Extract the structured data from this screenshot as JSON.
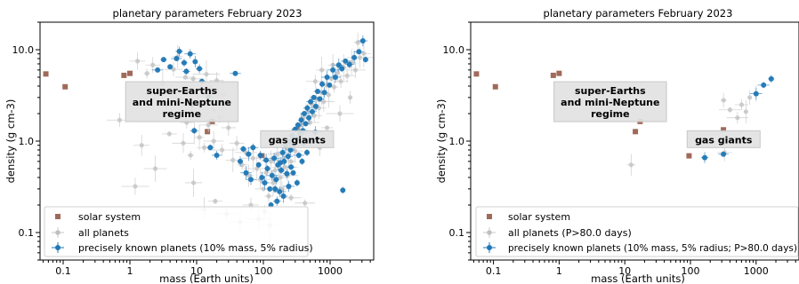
{
  "chart_data": [
    {
      "type": "scatter",
      "title": "planetary parameters February 2023",
      "xlabel": "mass (Earth units)",
      "ylabel": "density (g cm-3)",
      "xscale": "log",
      "yscale": "log",
      "xlim": [
        0.045,
        4500
      ],
      "ylim": [
        0.05,
        20
      ],
      "xticks": [
        "0.1",
        "1",
        "10",
        "100",
        "1000"
      ],
      "yticks": [
        "0.1",
        "1.0",
        "10.0"
      ],
      "grid": false,
      "legend_position": "lower-left",
      "legend": [
        "solar system",
        "all planets",
        "precisely known planets (10% mass, 5% radius)"
      ],
      "annotations": [
        {
          "text": "super-Earths\nand mini-Neptune\nregime",
          "x": 6,
          "y": 2.7
        },
        {
          "text": "gas giants",
          "x": 320,
          "y": 1.05
        }
      ],
      "series": [
        {
          "name": "solar system",
          "color": "#a0695a",
          "marker": "square",
          "points": [
            [
              0.055,
              5.43
            ],
            [
              0.107,
              3.93
            ],
            [
              0.815,
              5.24
            ],
            [
              1.0,
              5.51
            ],
            [
              14.5,
              1.27
            ],
            [
              17.1,
              1.64
            ],
            [
              95.2,
              0.69
            ],
            [
              318,
              1.33
            ]
          ]
        },
        {
          "name": "all planets",
          "color": "#c0c0c0",
          "marker": "circle",
          "points": [
            [
              1.3,
              7.5
            ],
            [
              1.8,
              5.5
            ],
            [
              2.2,
              6.8
            ],
            [
              3.1,
              4.2
            ],
            [
              4.5,
              6.1
            ],
            [
              5.2,
              8.4
            ],
            [
              6.8,
              5.0
            ],
            [
              7.5,
              3.6
            ],
            [
              8.9,
              4.8
            ],
            [
              10.5,
              3.1
            ],
            [
              12,
              2.6
            ],
            [
              14,
              5.4
            ],
            [
              16,
              3.8
            ],
            [
              18,
              2.2
            ],
            [
              20,
              4.6
            ],
            [
              22,
              1.8
            ],
            [
              25,
              3.2
            ],
            [
              3.5,
              2.4
            ],
            [
              4.2,
              1.9
            ],
            [
              5.8,
              2.9
            ],
            [
              7.1,
              1.6
            ],
            [
              9.2,
              1.3
            ],
            [
              11,
              1.1
            ],
            [
              13,
              0.85
            ],
            [
              15,
              1.5
            ],
            [
              6.3,
              0.95
            ],
            [
              8.1,
              0.7
            ],
            [
              3.9,
              1.2
            ],
            [
              2.7,
              3.3
            ],
            [
              18,
              1.0
            ],
            [
              24,
              0.8
            ],
            [
              30,
              1.4
            ],
            [
              35,
              0.62
            ],
            [
              40,
              0.95
            ],
            [
              48,
              0.55
            ],
            [
              55,
              0.75
            ],
            [
              60,
              0.42
            ],
            [
              70,
              0.65
            ],
            [
              80,
              0.5
            ],
            [
              90,
              0.38
            ],
            [
              100,
              0.3
            ],
            [
              110,
              0.45
            ],
            [
              120,
              0.25
            ],
            [
              130,
              0.6
            ],
            [
              140,
              0.35
            ],
            [
              150,
              0.48
            ],
            [
              160,
              0.72
            ],
            [
              170,
              0.55
            ],
            [
              180,
              0.4
            ],
            [
              190,
              0.3
            ],
            [
              200,
              0.65
            ],
            [
              210,
              0.52
            ],
            [
              220,
              0.85
            ],
            [
              230,
              0.42
            ],
            [
              240,
              0.7
            ],
            [
              250,
              0.95
            ],
            [
              260,
              0.6
            ],
            [
              280,
              1.1
            ],
            [
              300,
              0.78
            ],
            [
              320,
              1.3
            ],
            [
              340,
              0.9
            ],
            [
              360,
              1.5
            ],
            [
              380,
              1.05
            ],
            [
              400,
              1.8
            ],
            [
              430,
              1.25
            ],
            [
              460,
              2.1
            ],
            [
              500,
              1.6
            ],
            [
              540,
              2.5
            ],
            [
              580,
              1.9
            ],
            [
              620,
              2.9
            ],
            [
              680,
              2.3
            ],
            [
              740,
              3.4
            ],
            [
              800,
              2.7
            ],
            [
              880,
              4.1
            ],
            [
              950,
              3.2
            ],
            [
              1050,
              4.8
            ],
            [
              1150,
              3.9
            ],
            [
              1300,
              5.6
            ],
            [
              1450,
              4.5
            ],
            [
              1600,
              6.4
            ],
            [
              1800,
              5.2
            ],
            [
              2100,
              7.3
            ],
            [
              2400,
              6.0
            ],
            [
              2800,
              8.2
            ],
            [
              3200,
              9.1
            ],
            [
              0.7,
              1.7
            ],
            [
              1.5,
              0.9
            ],
            [
              2.4,
              0.5
            ],
            [
              9.0,
              0.35
            ],
            [
              13,
              0.18
            ],
            [
              19,
              0.22
            ],
            [
              1.2,
              0.32
            ],
            [
              28,
              0.16
            ],
            [
              45,
              0.13
            ],
            [
              65,
              0.2
            ],
            [
              85,
              0.14
            ],
            [
              105,
              0.17
            ],
            [
              125,
              0.12
            ],
            [
              260,
              0.24
            ],
            [
              420,
              0.21
            ],
            [
              700,
              0.85
            ],
            [
              900,
              1.4
            ],
            [
              1400,
              2.0
            ],
            [
              2000,
              3.0
            ],
            [
              2600,
              12.0
            ],
            [
              1100,
              6.8
            ],
            [
              750,
              6.0
            ],
            [
              600,
              4.5
            ]
          ]
        },
        {
          "name": "precisely known planets (10% mass, 5% radius)",
          "color": "#1f77b4",
          "marker": "circle",
          "points": [
            [
              5.0,
              8.0
            ],
            [
              6.5,
              7.2
            ],
            [
              8.0,
              9.0
            ],
            [
              4.0,
              6.5
            ],
            [
              7.0,
              5.8
            ],
            [
              11,
              6.2
            ],
            [
              3.2,
              7.8
            ],
            [
              9.5,
              7.4
            ],
            [
              5.5,
              9.6
            ],
            [
              2.6,
              6.0
            ],
            [
              12,
              4.5
            ],
            [
              15,
              3.1
            ],
            [
              8.5,
              2.5
            ],
            [
              38,
              5.5
            ],
            [
              9.2,
              1.3
            ],
            [
              16,
              0.85
            ],
            [
              20,
              0.7
            ],
            [
              45,
              0.6
            ],
            [
              55,
              0.45
            ],
            [
              60,
              0.72
            ],
            [
              70,
              0.85
            ],
            [
              85,
              0.55
            ],
            [
              95,
              0.4
            ],
            [
              105,
              0.35
            ],
            [
              115,
              0.5
            ],
            [
              125,
              0.3
            ],
            [
              135,
              0.42
            ],
            [
              145,
              0.65
            ],
            [
              155,
              0.38
            ],
            [
              165,
              0.55
            ],
            [
              175,
              0.28
            ],
            [
              185,
              0.48
            ],
            [
              195,
              0.75
            ],
            [
              205,
              0.6
            ],
            [
              215,
              0.9
            ],
            [
              225,
              0.44
            ],
            [
              235,
              0.68
            ],
            [
              245,
              1.0
            ],
            [
              255,
              0.8
            ],
            [
              270,
              1.15
            ],
            [
              285,
              0.92
            ],
            [
              300,
              1.35
            ],
            [
              315,
              1.05
            ],
            [
              330,
              1.5
            ],
            [
              350,
              1.2
            ],
            [
              370,
              1.7
            ],
            [
              390,
              1.3
            ],
            [
              410,
              2.0
            ],
            [
              430,
              1.55
            ],
            [
              455,
              2.3
            ],
            [
              480,
              1.8
            ],
            [
              510,
              2.7
            ],
            [
              540,
              2.1
            ],
            [
              570,
              3.0
            ],
            [
              610,
              2.4
            ],
            [
              650,
              3.5
            ],
            [
              700,
              2.9
            ],
            [
              760,
              4.2
            ],
            [
              820,
              3.4
            ],
            [
              900,
              5.0
            ],
            [
              980,
              4.1
            ],
            [
              1100,
              6.0
            ],
            [
              1200,
              5.0
            ],
            [
              1350,
              6.8
            ],
            [
              1500,
              6.2
            ],
            [
              1700,
              7.5
            ],
            [
              1950,
              6.9
            ],
            [
              2300,
              8.2
            ],
            [
              2700,
              9.5
            ],
            [
              3100,
              12.5
            ],
            [
              3400,
              7.8
            ],
            [
              1550,
              0.29
            ],
            [
              130,
              0.2
            ],
            [
              160,
              0.22
            ],
            [
              200,
              0.25
            ],
            [
              320,
              0.35
            ],
            [
              280,
              0.45
            ],
            [
              380,
              0.6
            ],
            [
              450,
              0.75
            ],
            [
              520,
              1.0
            ],
            [
              600,
              1.25
            ],
            [
              400,
              0.95
            ],
            [
              240,
              0.32
            ],
            [
              180,
              0.58
            ],
            [
              260,
              0.52
            ],
            [
              340,
              0.7
            ],
            [
              150,
              0.3
            ],
            [
              110,
              0.62
            ],
            [
              90,
              0.7
            ],
            [
              50,
              0.82
            ],
            [
              65,
              0.38
            ]
          ]
        }
      ]
    },
    {
      "type": "scatter",
      "title": "planetary parameters February 2023",
      "xlabel": "mass (Earth units)",
      "ylabel": "density (g cm-3)",
      "xscale": "log",
      "yscale": "log",
      "xlim": [
        0.045,
        4500
      ],
      "ylim": [
        0.05,
        20
      ],
      "xticks": [
        "0.1",
        "1",
        "10",
        "100",
        "1000"
      ],
      "yticks": [
        "0.1",
        "1.0",
        "10.0"
      ],
      "grid": false,
      "legend_position": "lower-left",
      "legend": [
        "solar system",
        "all planets (P>80.0 days)",
        "precisely known planets (10% mass, 5% radius; P>80.0 days)"
      ],
      "annotations": [
        {
          "text": "super-Earths\nand mini-Neptune\nregime",
          "x": 6,
          "y": 2.7
        },
        {
          "text": "gas giants",
          "x": 320,
          "y": 1.05
        }
      ],
      "series": [
        {
          "name": "solar system",
          "color": "#a0695a",
          "marker": "square",
          "points": [
            [
              0.055,
              5.43
            ],
            [
              0.107,
              3.93
            ],
            [
              0.815,
              5.24
            ],
            [
              1.0,
              5.51
            ],
            [
              14.5,
              1.27
            ],
            [
              17.1,
              1.64
            ],
            [
              95.2,
              0.69
            ],
            [
              318,
              1.33
            ]
          ]
        },
        {
          "name": "all planets (P>80.0 days)",
          "color": "#c0c0c0",
          "marker": "circle",
          "points": [
            [
              12.5,
              0.55
            ],
            [
              320,
              2.8
            ],
            [
              400,
              2.2
            ],
            [
              600,
              2.5
            ],
            [
              800,
              3.0
            ],
            [
              520,
              1.8
            ],
            [
              1000,
              3.3
            ],
            [
              330,
              0.75
            ],
            [
              700,
              2.1
            ]
          ]
        },
        {
          "name": "precisely known planets (10% mass, 5% radius; P>80.0 days)",
          "color": "#1f77b4",
          "marker": "circle",
          "points": [
            [
              165,
              0.66
            ],
            [
              318,
              0.72
            ],
            [
              1000,
              3.3
            ],
            [
              1300,
              4.1
            ],
            [
              1700,
              4.8
            ]
          ]
        }
      ]
    }
  ]
}
